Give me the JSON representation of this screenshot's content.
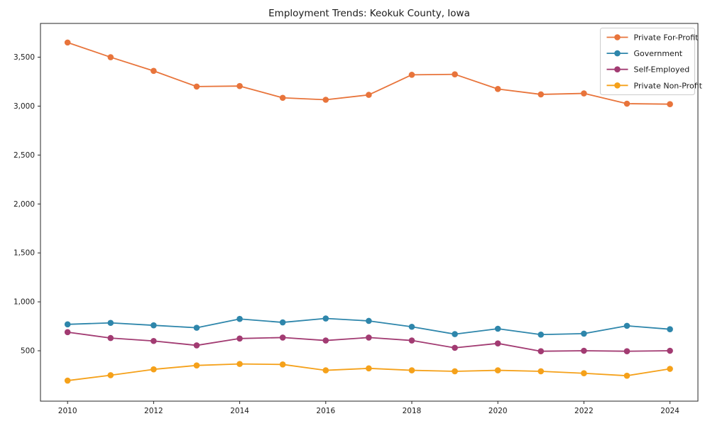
{
  "chart_data": {
    "type": "line",
    "title": "Employment Trends: Keokuk County, Iowa",
    "xlabel": "",
    "ylabel": "",
    "x": [
      2010,
      2011,
      2012,
      2013,
      2014,
      2015,
      2016,
      2017,
      2018,
      2019,
      2020,
      2021,
      2022,
      2023,
      2024
    ],
    "series": [
      {
        "name": "Private For-Profit",
        "color": "#E8743B",
        "values": [
          3650,
          3500,
          3360,
          3200,
          3205,
          3085,
          3065,
          3115,
          3320,
          3325,
          3175,
          3120,
          3130,
          3025,
          3020
        ]
      },
      {
        "name": "Government",
        "color": "#2E86AB",
        "values": [
          770,
          785,
          760,
          735,
          825,
          790,
          830,
          805,
          745,
          670,
          725,
          665,
          675,
          755,
          720
        ]
      },
      {
        "name": "Self-Employed",
        "color": "#A23B72",
        "values": [
          690,
          630,
          600,
          555,
          625,
          635,
          605,
          635,
          605,
          530,
          575,
          495,
          500,
          495,
          500
        ]
      },
      {
        "name": "Private Non-Profit",
        "color": "#F5A11A",
        "values": [
          195,
          250,
          310,
          350,
          365,
          360,
          300,
          320,
          300,
          290,
          300,
          290,
          270,
          245,
          315
        ]
      }
    ],
    "xlim": [
      2009.37,
      2024.65
    ],
    "ylim": [
      -15,
      3845
    ],
    "x_ticks": {
      "values": [
        2010,
        2012,
        2014,
        2016,
        2018,
        2020,
        2022,
        2024
      ],
      "labels": [
        "2010",
        "2012",
        "2014",
        "2016",
        "2018",
        "2020",
        "2022",
        "2024"
      ]
    },
    "y_ticks": {
      "values": [
        500,
        1000,
        1500,
        2000,
        2500,
        3000,
        3500
      ],
      "labels": [
        "500",
        "1,000",
        "1,500",
        "2,000",
        "2,500",
        "3,000",
        "3,500"
      ]
    },
    "grid": false,
    "legend": {
      "position": "upper right",
      "entries": [
        {
          "label": "Private For-Profit",
          "color": "#E8743B"
        },
        {
          "label": "Government",
          "color": "#2E86AB"
        },
        {
          "label": "Self-Employed",
          "color": "#A23B72"
        },
        {
          "label": "Private Non-Profit",
          "color": "#F5A11A"
        }
      ]
    },
    "axis_color": "#262626",
    "tick_label_color": "#1a1a1a",
    "background_color": "#ffffff"
  }
}
